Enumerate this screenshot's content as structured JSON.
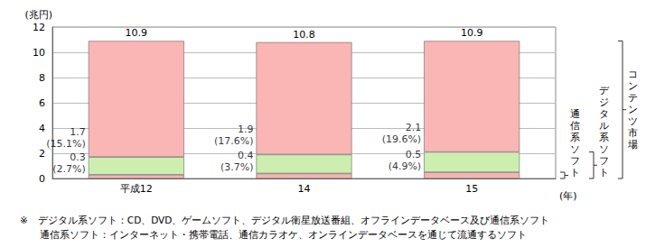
{
  "chart_data": {
    "type": "bar",
    "stacked": true,
    "categories": [
      "平成12",
      "14",
      "15"
    ],
    "series": [
      {
        "name": "通信系ソフト",
        "color": "#f6b3b3",
        "values": [
          0.3,
          0.4,
          0.5
        ],
        "labels": [
          "0.3",
          "0.4",
          "0.5"
        ],
        "shares": [
          "(2.7%)",
          "(3.7%)",
          "(4.9%)"
        ]
      },
      {
        "name": "デジタル系ソフト",
        "color": "#ccefb0",
        "values": [
          1.4,
          1.5,
          1.6
        ]
      },
      {
        "name": "コンテンツ市場",
        "color": "#fab5b5",
        "values": [
          9.2,
          8.9,
          8.8
        ]
      }
    ],
    "totals": [
      10.9,
      10.8,
      10.9
    ],
    "digital_totals": [
      {
        "value": 1.7,
        "label": "1.7",
        "share": "(15.1%)"
      },
      {
        "value": 1.9,
        "label": "1.9",
        "share": "(17.6%)"
      },
      {
        "value": 2.1,
        "label": "2.1",
        "share": "(19.6%)"
      }
    ],
    "y_label": "(兆円)",
    "x_label": "(年)",
    "ylim": [
      0,
      12
    ],
    "yticks": [
      0,
      2,
      4,
      6,
      8,
      10,
      12
    ],
    "grid": true,
    "notes": [
      "※　デジタル系ソフト：CD、DVD、ゲームソフト、デジタル衛星放送番組、オフラインデータベース及び通信系ソフト",
      "通信系ソフト：インターネット・携帯電話、通信カラオケ、オンラインデータベースを通じて流通するソフト"
    ]
  }
}
